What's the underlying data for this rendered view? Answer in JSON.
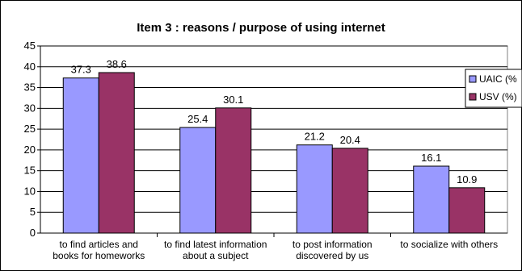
{
  "chart_data": {
    "type": "bar",
    "title": "Item 3 : reasons / purpose of using internet",
    "categories": [
      [
        "to find articles and",
        "books for homeworks"
      ],
      [
        "to find latest information",
        "about a subject"
      ],
      [
        "to post information",
        "discovered by us"
      ],
      [
        "to socialize with others"
      ]
    ],
    "series": [
      {
        "name": "UAIC  (%",
        "color": "#9999ff",
        "values": [
          37.3,
          25.4,
          21.2,
          16.1
        ]
      },
      {
        "name": "USV (%)",
        "color": "#993366",
        "values": [
          38.6,
          30.1,
          20.4,
          10.9
        ]
      }
    ],
    "y_ticks": [
      0,
      5,
      10,
      15,
      20,
      25,
      30,
      35,
      40,
      45
    ],
    "ylim": [
      0,
      45
    ],
    "grid": true,
    "legend_position": "right"
  }
}
